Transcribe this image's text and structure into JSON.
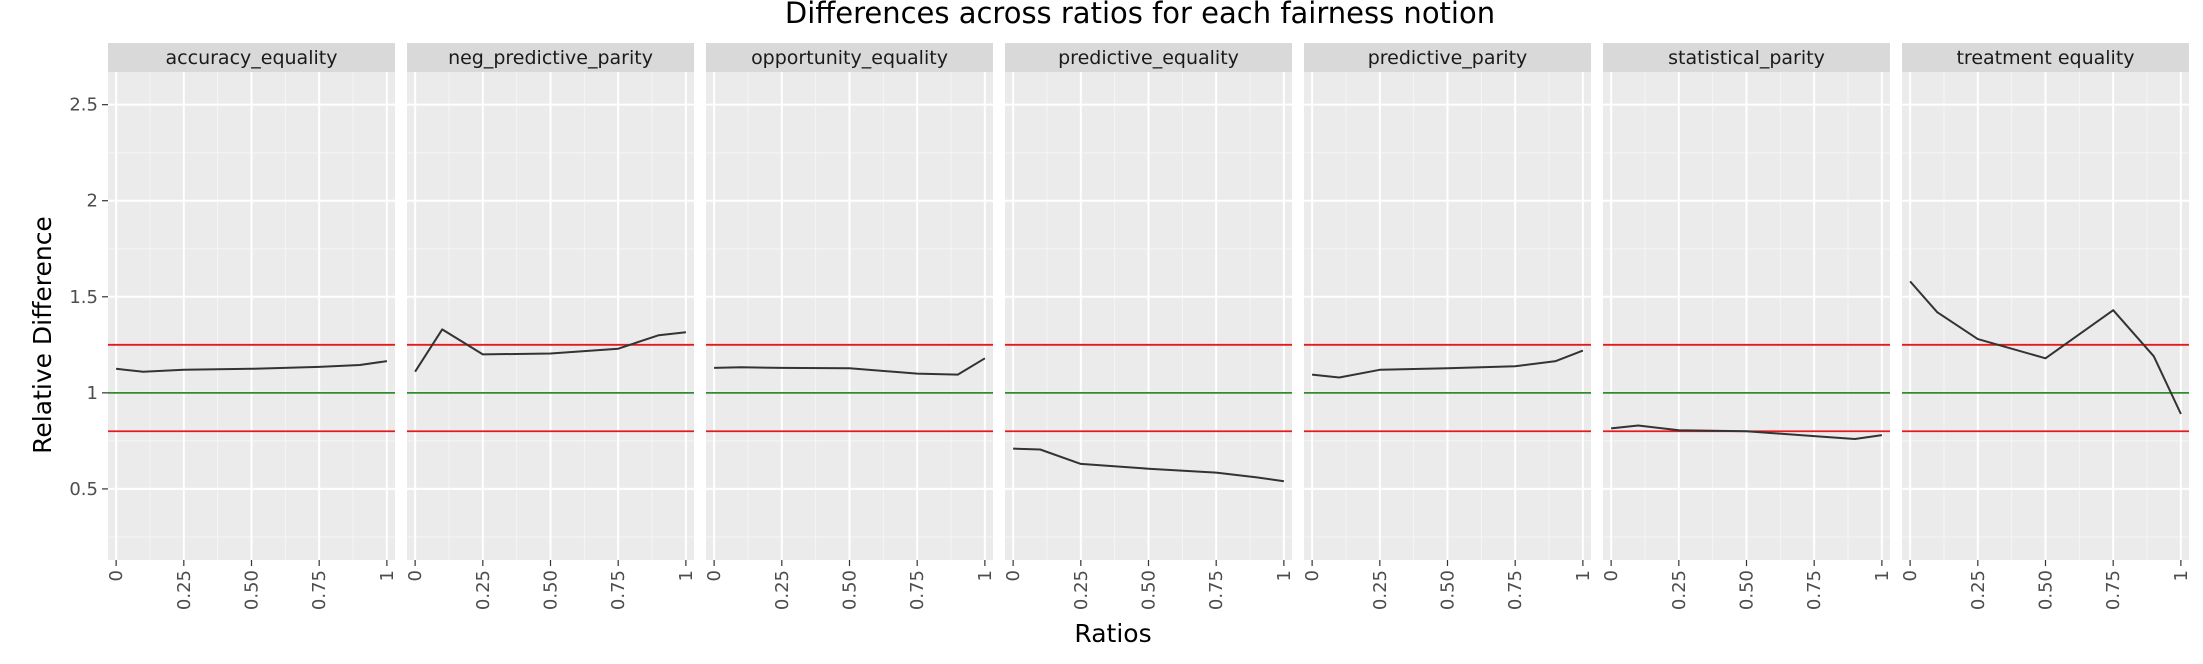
{
  "chart_data": {
    "type": "line",
    "title": "Differences across ratios for each fairness notion",
    "xlabel": "Ratios",
    "ylabel": "Relative Difference",
    "xlim": [
      -0.03,
      1.03
    ],
    "ylim": [
      0.13,
      2.67
    ],
    "x_ticks": [
      0,
      0.25,
      0.5,
      0.75,
      1
    ],
    "x_tick_labels": [
      "0",
      "0.25",
      "0.50",
      "0.75",
      "1"
    ],
    "y_ticks": [
      0.5,
      1,
      1.5,
      2,
      2.5
    ],
    "y_tick_labels": [
      "0.5",
      "1",
      "1.5",
      "2",
      "2.5"
    ],
    "grid": true,
    "reference_lines": [
      {
        "y": 1.25,
        "color": "#e41a1c"
      },
      {
        "y": 1.0,
        "color": "#2e8b2e"
      },
      {
        "y": 0.8,
        "color": "#e41a1c"
      }
    ],
    "panels": [
      {
        "name": "accuracy_equality",
        "x": [
          0,
          0.1,
          0.25,
          0.5,
          0.75,
          0.9,
          1
        ],
        "y": [
          1.125,
          1.11,
          1.12,
          1.125,
          1.135,
          1.145,
          1.165
        ]
      },
      {
        "name": "neg_predictive_parity",
        "x": [
          0,
          0.1,
          0.25,
          0.5,
          0.75,
          0.9,
          1
        ],
        "y": [
          1.11,
          1.33,
          1.2,
          1.205,
          1.23,
          1.3,
          1.315
        ]
      },
      {
        "name": "opportunity_equality",
        "x": [
          0,
          0.1,
          0.25,
          0.5,
          0.75,
          0.9,
          1
        ],
        "y": [
          1.13,
          1.133,
          1.13,
          1.128,
          1.1,
          1.095,
          1.18
        ]
      },
      {
        "name": "predictive_equality",
        "x": [
          0,
          0.1,
          0.25,
          0.5,
          0.75,
          0.9,
          1
        ],
        "y": [
          0.71,
          0.705,
          0.63,
          0.605,
          0.585,
          0.56,
          0.54
        ]
      },
      {
        "name": "predictive_parity",
        "x": [
          0,
          0.1,
          0.25,
          0.5,
          0.75,
          0.9,
          1
        ],
        "y": [
          1.095,
          1.08,
          1.12,
          1.128,
          1.138,
          1.165,
          1.22
        ]
      },
      {
        "name": "statistical_parity",
        "x": [
          0,
          0.1,
          0.25,
          0.5,
          0.75,
          0.9,
          1
        ],
        "y": [
          0.815,
          0.83,
          0.805,
          0.8,
          0.775,
          0.76,
          0.78
        ]
      },
      {
        "name": "treatment equality",
        "x": [
          0,
          0.1,
          0.25,
          0.5,
          0.75,
          0.9,
          1
        ],
        "y": [
          1.58,
          1.42,
          1.28,
          1.18,
          1.43,
          1.19,
          0.89
        ]
      }
    ]
  }
}
